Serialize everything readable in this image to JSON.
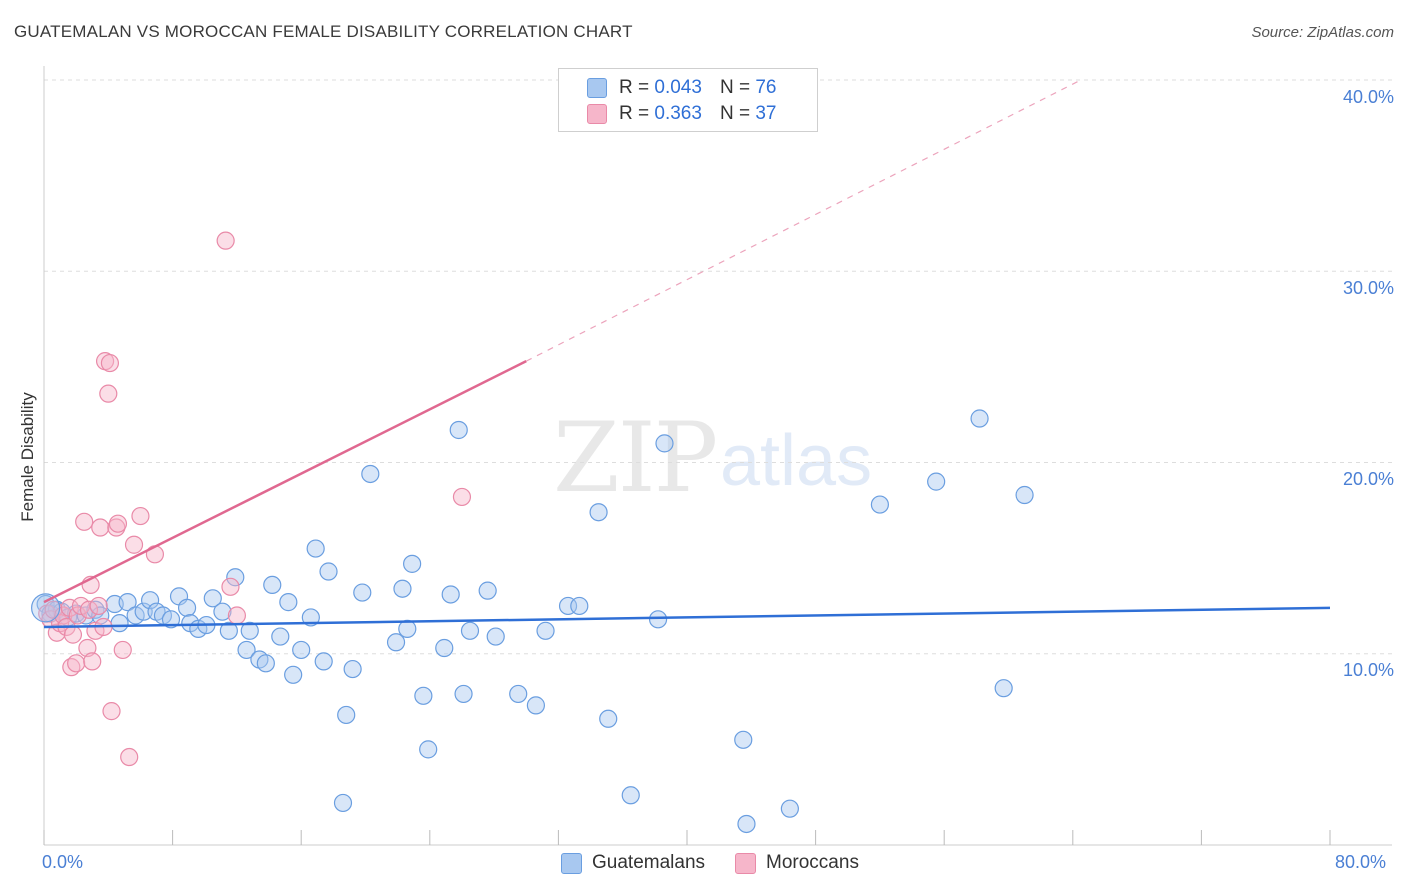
{
  "title": "GUATEMALAN VS MOROCCAN FEMALE DISABILITY CORRELATION CHART",
  "source": "Source: ZipAtlas.com",
  "watermark": {
    "zip": "ZIP",
    "atlas": "atlas"
  },
  "legend": {
    "rows": [
      {
        "r_label": "R =",
        "r_value": "0.043",
        "n_label": "N =",
        "n_value": "76"
      },
      {
        "r_label": "R =",
        "r_value": "0.363",
        "n_label": "N =",
        "n_value": "37"
      }
    ]
  },
  "bottom_legend": [
    "Guatemalans",
    "Moroccans"
  ],
  "colors": {
    "blue_fill": "#a8c8f0",
    "blue_stroke": "#6a9ee0",
    "blue_line": "#2f6fd6",
    "pink_fill": "#f6b6ca",
    "pink_stroke": "#e98aa8",
    "pink_line": "#e06890",
    "grid": "#dddddd"
  },
  "chart_data": {
    "type": "scatter",
    "title": "GUATEMALAN VS MOROCCAN FEMALE DISABILITY CORRELATION CHART",
    "xlabel": "",
    "ylabel": "Female Disability",
    "xlim": [
      0,
      80
    ],
    "ylim": [
      0,
      40
    ],
    "x_tick_labels": [
      "0.0%",
      "80.0%"
    ],
    "y_tick_labels": [
      "10.0%",
      "20.0%",
      "30.0%",
      "40.0%"
    ],
    "y_ticks": [
      10,
      20,
      30,
      40
    ],
    "legend_position": "top-center",
    "series": [
      {
        "name": "Guatemalans",
        "R": 0.043,
        "N": 76,
        "trend": {
          "x": [
            0,
            80
          ],
          "y": [
            11.4,
            12.4
          ]
        },
        "points": [
          [
            0.1,
            12.6
          ],
          [
            0.4,
            12.1
          ],
          [
            0.8,
            12.3
          ],
          [
            1.1,
            12.2
          ],
          [
            1.5,
            11.9
          ],
          [
            2.0,
            12.1
          ],
          [
            2.6,
            12.0
          ],
          [
            3.2,
            12.3
          ],
          [
            3.5,
            12.0
          ],
          [
            4.4,
            12.6
          ],
          [
            4.7,
            11.6
          ],
          [
            5.2,
            12.7
          ],
          [
            5.7,
            12.0
          ],
          [
            6.2,
            12.2
          ],
          [
            6.6,
            12.8
          ],
          [
            7.0,
            12.2
          ],
          [
            7.4,
            12.0
          ],
          [
            7.9,
            11.8
          ],
          [
            8.4,
            13.0
          ],
          [
            8.9,
            12.4
          ],
          [
            9.1,
            11.6
          ],
          [
            9.6,
            11.3
          ],
          [
            10.1,
            11.5
          ],
          [
            10.5,
            12.9
          ],
          [
            11.1,
            12.2
          ],
          [
            11.5,
            11.2
          ],
          [
            11.9,
            14.0
          ],
          [
            12.6,
            10.2
          ],
          [
            12.8,
            11.2
          ],
          [
            13.4,
            9.7
          ],
          [
            13.8,
            9.5
          ],
          [
            14.2,
            13.6
          ],
          [
            14.7,
            10.9
          ],
          [
            15.2,
            12.7
          ],
          [
            15.5,
            8.9
          ],
          [
            16.0,
            10.2
          ],
          [
            16.6,
            11.9
          ],
          [
            16.9,
            15.5
          ],
          [
            17.4,
            9.6
          ],
          [
            17.7,
            14.3
          ],
          [
            18.6,
            2.2
          ],
          [
            18.8,
            6.8
          ],
          [
            19.2,
            9.2
          ],
          [
            19.8,
            13.2
          ],
          [
            20.3,
            19.4
          ],
          [
            21.9,
            10.6
          ],
          [
            22.3,
            13.4
          ],
          [
            22.6,
            11.3
          ],
          [
            22.9,
            14.7
          ],
          [
            23.6,
            7.8
          ],
          [
            23.9,
            5.0
          ],
          [
            24.9,
            10.3
          ],
          [
            25.3,
            13.1
          ],
          [
            25.8,
            21.7
          ],
          [
            26.1,
            7.9
          ],
          [
            26.5,
            11.2
          ],
          [
            27.6,
            13.3
          ],
          [
            28.1,
            10.9
          ],
          [
            29.5,
            7.9
          ],
          [
            30.6,
            7.3
          ],
          [
            31.2,
            11.2
          ],
          [
            32.6,
            12.5
          ],
          [
            33.3,
            12.5
          ],
          [
            34.5,
            17.4
          ],
          [
            35.1,
            6.6
          ],
          [
            36.5,
            2.6
          ],
          [
            38.2,
            11.8
          ],
          [
            38.6,
            21.0
          ],
          [
            43.5,
            5.5
          ],
          [
            43.7,
            1.1
          ],
          [
            46.4,
            1.9
          ],
          [
            52.0,
            17.8
          ],
          [
            55.5,
            19.0
          ],
          [
            58.2,
            22.3
          ],
          [
            59.7,
            8.2
          ],
          [
            61.0,
            18.3
          ]
        ]
      },
      {
        "name": "Moroccans",
        "R": 0.363,
        "N": 37,
        "trend": {
          "x": [
            0,
            30
          ],
          "y": [
            12.7,
            25.3
          ]
        },
        "trend_dashed": {
          "x": [
            30,
            64.5
          ],
          "y": [
            25.3,
            40.0
          ]
        },
        "points": [
          [
            0.2,
            12.1
          ],
          [
            0.4,
            11.8
          ],
          [
            0.6,
            12.3
          ],
          [
            0.8,
            11.1
          ],
          [
            1.0,
            11.6
          ],
          [
            1.2,
            12.0
          ],
          [
            1.4,
            11.4
          ],
          [
            1.6,
            12.4
          ],
          [
            1.7,
            9.3
          ],
          [
            1.8,
            11.0
          ],
          [
            2.0,
            9.5
          ],
          [
            2.1,
            12.0
          ],
          [
            2.3,
            12.5
          ],
          [
            2.5,
            16.9
          ],
          [
            2.7,
            10.3
          ],
          [
            2.8,
            12.3
          ],
          [
            2.9,
            13.6
          ],
          [
            3.0,
            9.6
          ],
          [
            3.2,
            11.2
          ],
          [
            3.4,
            12.5
          ],
          [
            3.5,
            16.6
          ],
          [
            3.7,
            11.4
          ],
          [
            3.8,
            25.3
          ],
          [
            4.0,
            23.6
          ],
          [
            4.1,
            25.2
          ],
          [
            4.2,
            7.0
          ],
          [
            4.5,
            16.6
          ],
          [
            4.6,
            16.8
          ],
          [
            4.9,
            10.2
          ],
          [
            5.3,
            4.6
          ],
          [
            5.6,
            15.7
          ],
          [
            6.0,
            17.2
          ],
          [
            6.9,
            15.2
          ],
          [
            11.3,
            31.6
          ],
          [
            11.6,
            13.5
          ],
          [
            12.0,
            12.0
          ],
          [
            26.0,
            18.2
          ]
        ]
      }
    ]
  }
}
